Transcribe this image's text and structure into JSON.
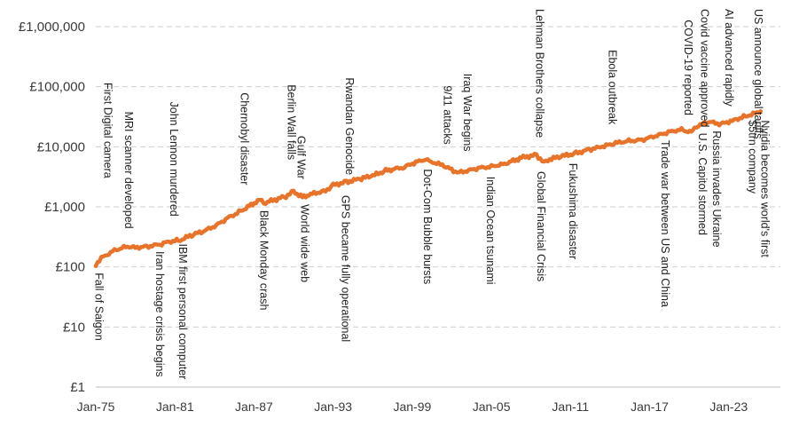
{
  "chart_data": {
    "type": "line",
    "title": "",
    "xlabel": "",
    "ylabel": "",
    "scale": "log",
    "grid": "horizontal dashed",
    "line_color": "#E8732A",
    "y_ticks": [
      {
        "value": 1,
        "label": "£1"
      },
      {
        "value": 10,
        "label": "£10"
      },
      {
        "value": 100,
        "label": "£100"
      },
      {
        "value": 1000,
        "label": "£1,000"
      },
      {
        "value": 10000,
        "label": "£10,000"
      },
      {
        "value": 100000,
        "label": "£100,000"
      },
      {
        "value": 1000000,
        "label": "£1,000,000"
      }
    ],
    "ylim": [
      1,
      1000000
    ],
    "xlim": [
      "1975-01",
      "2026-12"
    ],
    "x_ticks": [
      {
        "date": "1975-01",
        "label": "Jan-75"
      },
      {
        "date": "1981-01",
        "label": "Jan-81"
      },
      {
        "date": "1987-01",
        "label": "Jan-87"
      },
      {
        "date": "1993-01",
        "label": "Jan-93"
      },
      {
        "date": "1999-01",
        "label": "Jan-99"
      },
      {
        "date": "2005-01",
        "label": "Jan-05"
      },
      {
        "date": "2011-01",
        "label": "Jan-11"
      },
      {
        "date": "2017-01",
        "label": "Jan-17"
      },
      {
        "date": "2023-01",
        "label": "Jan-23"
      }
    ],
    "series": [
      {
        "x": [
          "1975-01",
          "1975-06",
          "1976-06",
          "1977-06",
          "1978-01",
          "1979-01",
          "1980-01",
          "1980-06",
          "1981-06",
          "1982-06",
          "1983-01",
          "1984-01",
          "1985-01",
          "1986-01",
          "1987-06",
          "1987-10",
          "1988-06",
          "1989-06",
          "1990-01",
          "1990-09",
          "1991-06",
          "1992-06",
          "1993-01",
          "1994-01",
          "1995-01",
          "1996-01",
          "1997-01",
          "1998-06",
          "1999-01",
          "1999-12",
          "2000-06",
          "2001-06",
          "2002-06",
          "2003-01",
          "2004-01",
          "2005-01",
          "2006-01",
          "2007-06",
          "2008-06",
          "2009-01",
          "2009-06",
          "2010-06",
          "2011-06",
          "2012-06",
          "2013-06",
          "2014-06",
          "2015-06",
          "2016-06",
          "2017-06",
          "2018-06",
          "2019-06",
          "2020-03",
          "2020-06",
          "2021-06",
          "2022-06",
          "2023-06",
          "2024-06",
          "2025-01",
          "2025-06"
        ],
        "y": [
          110,
          140,
          190,
          220,
          210,
          220,
          240,
          260,
          280,
          350,
          380,
          470,
          650,
          850,
          1300,
          1150,
          1280,
          1500,
          1800,
          1450,
          1650,
          1850,
          2300,
          2600,
          2900,
          3300,
          4000,
          4600,
          5200,
          6200,
          5700,
          4800,
          3700,
          3900,
          4400,
          4700,
          5200,
          6700,
          7300,
          5500,
          6200,
          7000,
          7800,
          9000,
          10000,
          11500,
          12500,
          13000,
          15000,
          17500,
          19500,
          17000,
          21000,
          26000,
          24000,
          28000,
          33000,
          36000,
          39000
        ]
      }
    ],
    "annotations": [
      {
        "label": "Fall of Saigon",
        "date": "1975-04",
        "y": 105
      },
      {
        "label": "First Digital camera",
        "date": "1975-12",
        "y": 1000
      },
      {
        "label": "MRI scanner developed",
        "date": "1977-07",
        "y": 230
      },
      {
        "label": "Iran hostage crisis begins",
        "date": "1979-11",
        "y": 240
      },
      {
        "label": "IBM first personal computer",
        "date": "1981-08",
        "y": 320
      },
      {
        "label": "John Lennon murdered",
        "date": "1980-12",
        "y": 420
      },
      {
        "label": "Chernobyl disaster",
        "date": "1986-04",
        "y": 1000
      },
      {
        "label": "Black Monday crash",
        "date": "1987-10",
        "y": 1150
      },
      {
        "label": "Berlin Wall falls",
        "date": "1989-11",
        "y": 1700
      },
      {
        "label": "World wide web",
        "date": "1990-11",
        "y": 1450
      },
      {
        "label": "Gulf War",
        "date": "1990-08",
        "y": 1800
      },
      {
        "label": "GPS became fully operational",
        "date": "1993-12",
        "y": 2200
      },
      {
        "label": "Rwandan Genocide",
        "date": "1994-04",
        "y": 2600
      },
      {
        "label": "Dot-Com Bubble bursts",
        "date": "2000-03",
        "y": 6000
      },
      {
        "label": "9/11 attacks",
        "date": "2001-09",
        "y": 4700
      },
      {
        "label": "Iraq War begins",
        "date": "2003-03",
        "y": 3800
      },
      {
        "label": "Indian Ocean tsunami",
        "date": "2004-12",
        "y": 4500
      },
      {
        "label": "Lehman Brothers collapse",
        "date": "2008-09",
        "y": 6500
      },
      {
        "label": "Global Financial Crisis",
        "date": "2008-10",
        "y": 5500
      },
      {
        "label": "Fukushima disaster",
        "date": "2011-03",
        "y": 7500
      },
      {
        "label": "Ebola outbreak",
        "date": "2014-03",
        "y": 11000
      },
      {
        "label": "Trade war between US and China",
        "date": "2018-03",
        "y": 18000
      },
      {
        "label": "COVID-19 reported",
        "date": "2019-12",
        "y": 19000
      },
      {
        "label": "U.S. Capitol stormed",
        "date": "2021-01",
        "y": 24000
      },
      {
        "label": "Covid vaccine approved",
        "date": "2021-03",
        "y": 25000
      },
      {
        "label": "Russia invades Ukraine",
        "date": "2022-02",
        "y": 26000
      },
      {
        "label": "AI advanced rapidly",
        "date": "2023-01",
        "y": 27000
      },
      {
        "label": "US announce global tariffs",
        "date": "2025-04",
        "y": 36000
      },
      {
        "label": "Nvidia becomes world's first $5trn company",
        "date": "2025-10",
        "y": 39000
      }
    ]
  }
}
